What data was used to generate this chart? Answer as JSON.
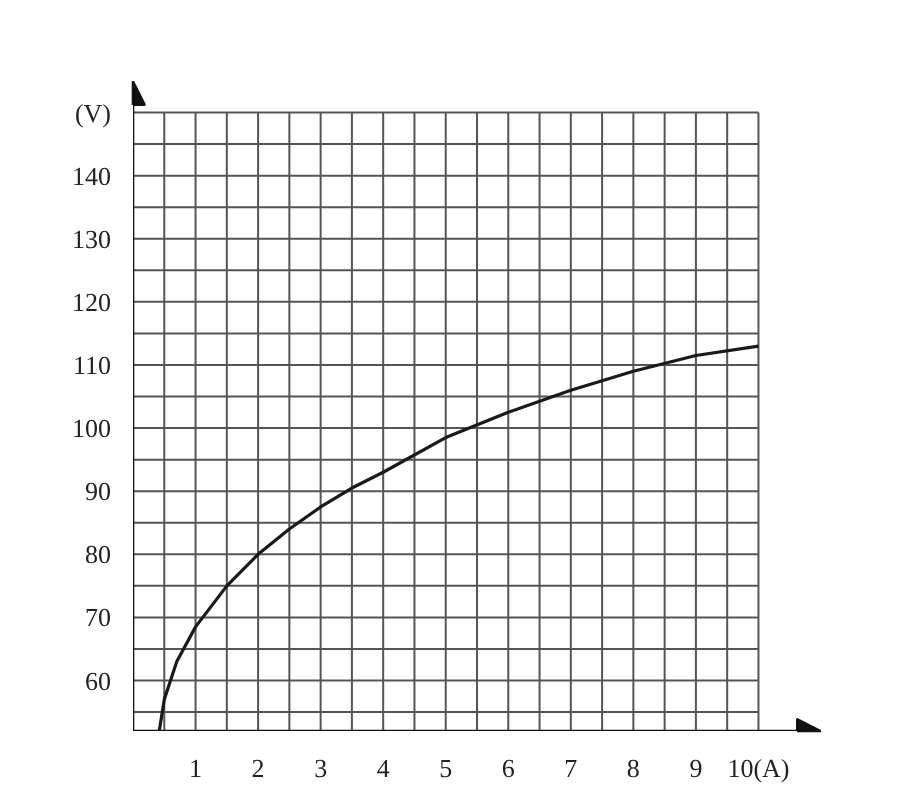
{
  "chart_data": {
    "type": "line",
    "x": [
      0.42,
      0.5,
      0.7,
      1,
      1.5,
      2,
      2.5,
      3,
      3.5,
      4,
      5,
      6,
      7,
      8,
      9,
      10
    ],
    "series": [
      {
        "color": "#1a1a1a",
        "values": [
          52,
          57,
          63,
          68.5,
          75,
          80,
          84,
          87.5,
          90.5,
          93,
          98.5,
          102.5,
          106,
          109,
          111.5,
          113
        ]
      }
    ],
    "xlim": [
      0,
      11
    ],
    "ylim": [
      52,
      155
    ],
    "xticks": [
      {
        "value": 0.5,
        "label": null
      },
      1,
      {
        "value": 1.5,
        "label": null
      },
      2,
      {
        "value": 2.5,
        "label": null
      },
      3,
      {
        "value": 3.5,
        "label": null
      },
      4,
      {
        "value": 4.5,
        "label": null
      },
      5,
      {
        "value": 5.5,
        "label": null
      },
      6,
      {
        "value": 6.5,
        "label": null
      },
      7,
      {
        "value": 7.5,
        "label": null
      },
      8,
      {
        "value": 8.5,
        "label": null
      },
      9,
      {
        "value": 9.5,
        "label": null
      },
      {
        "value": 10,
        "label": "10(A)"
      }
    ],
    "yticks": [
      {
        "value": 55,
        "label": null
      },
      60,
      {
        "value": 65,
        "label": null
      },
      70,
      {
        "value": 75,
        "label": null
      },
      80,
      {
        "value": 85,
        "label": null
      },
      90,
      {
        "value": 95,
        "label": null
      },
      100,
      {
        "value": 105,
        "label": null
      },
      110,
      {
        "value": 115,
        "label": null
      },
      120,
      {
        "value": 125,
        "label": null
      },
      130,
      {
        "value": 135,
        "label": null
      },
      140,
      {
        "value": 145,
        "label": null
      },
      {
        "value": 150,
        "label": "(V)"
      }
    ],
    "grid": true,
    "marker": "none",
    "line_style": "solid"
  }
}
